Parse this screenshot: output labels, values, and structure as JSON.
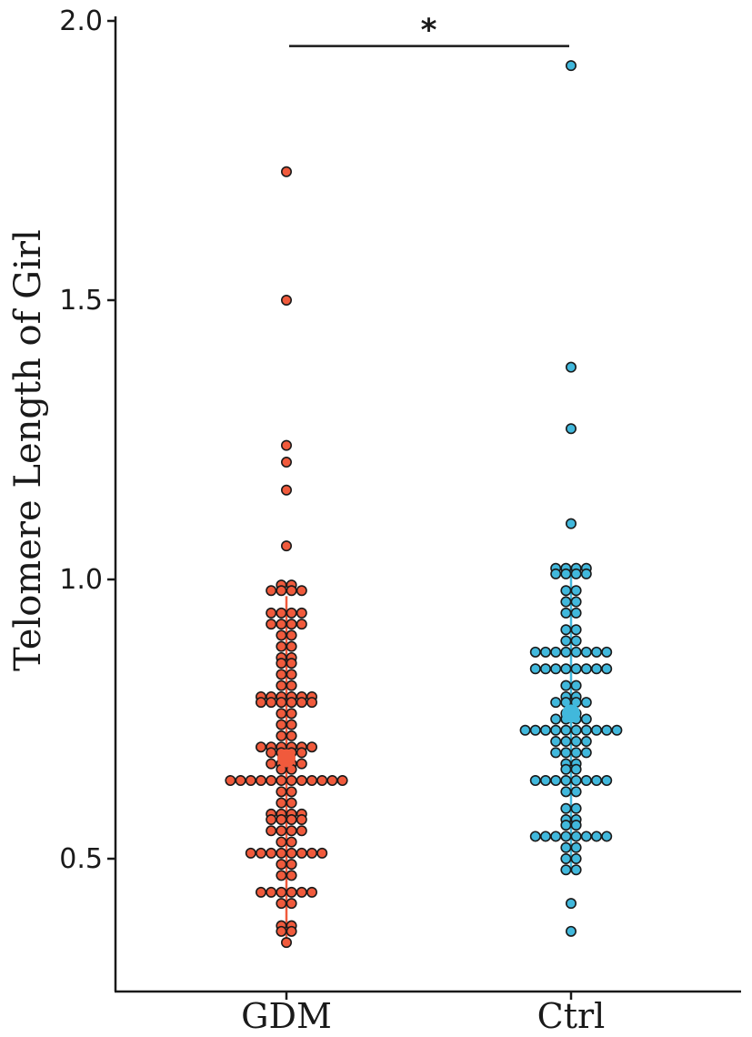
{
  "chart_data": {
    "type": "scatter",
    "style": "dot-plot (beeswarm) with mean point and error line",
    "ylabel": "Telomere Length of Girl",
    "xlabel": "",
    "categories": [
      "GDM",
      "Ctrl"
    ],
    "y_ticks": [
      "0.5",
      "1.0",
      "1.5",
      "2.0"
    ],
    "ylim": [
      0.27,
      2.0
    ],
    "significance": {
      "label": "*",
      "between": [
        "GDM",
        "Ctrl"
      ],
      "y": 1.955
    },
    "series": [
      {
        "category": "GDM",
        "color": "#f05a3c",
        "mean": 0.68,
        "range": [
          0.35,
          0.97
        ],
        "values": [
          1.73,
          1.5,
          1.24,
          1.21,
          1.16,
          1.06,
          0.99,
          0.99,
          0.98,
          0.98,
          0.98,
          0.98,
          0.94,
          0.94,
          0.94,
          0.94,
          0.92,
          0.92,
          0.92,
          0.92,
          0.9,
          0.9,
          0.88,
          0.88,
          0.86,
          0.86,
          0.85,
          0.85,
          0.83,
          0.83,
          0.81,
          0.81,
          0.79,
          0.79,
          0.79,
          0.79,
          0.79,
          0.79,
          0.78,
          0.78,
          0.78,
          0.78,
          0.78,
          0.78,
          0.76,
          0.76,
          0.74,
          0.74,
          0.72,
          0.72,
          0.7,
          0.7,
          0.7,
          0.7,
          0.7,
          0.7,
          0.69,
          0.69,
          0.69,
          0.69,
          0.67,
          0.67,
          0.67,
          0.67,
          0.66,
          0.66,
          0.64,
          0.64,
          0.64,
          0.64,
          0.64,
          0.64,
          0.64,
          0.64,
          0.64,
          0.64,
          0.64,
          0.64,
          0.62,
          0.62,
          0.6,
          0.6,
          0.58,
          0.58,
          0.58,
          0.58,
          0.57,
          0.57,
          0.57,
          0.57,
          0.55,
          0.55,
          0.55,
          0.55,
          0.53,
          0.53,
          0.51,
          0.51,
          0.51,
          0.51,
          0.51,
          0.51,
          0.51,
          0.51,
          0.49,
          0.49,
          0.47,
          0.47,
          0.44,
          0.44,
          0.44,
          0.44,
          0.44,
          0.44,
          0.42,
          0.42,
          0.38,
          0.38,
          0.37,
          0.37,
          0.35
        ]
      },
      {
        "category": "Ctrl",
        "color": "#41b8dc",
        "mean": 0.76,
        "range": [
          0.48,
          1.02
        ],
        "values": [
          1.92,
          1.38,
          1.27,
          1.1,
          1.02,
          1.02,
          1.02,
          1.02,
          1.01,
          1.01,
          1.01,
          1.01,
          0.98,
          0.98,
          0.96,
          0.96,
          0.94,
          0.94,
          0.91,
          0.91,
          0.89,
          0.89,
          0.87,
          0.87,
          0.87,
          0.87,
          0.87,
          0.87,
          0.87,
          0.87,
          0.84,
          0.84,
          0.84,
          0.84,
          0.84,
          0.84,
          0.84,
          0.84,
          0.81,
          0.81,
          0.79,
          0.79,
          0.78,
          0.78,
          0.78,
          0.78,
          0.76,
          0.76,
          0.75,
          0.75,
          0.75,
          0.75,
          0.73,
          0.73,
          0.73,
          0.73,
          0.73,
          0.73,
          0.73,
          0.73,
          0.73,
          0.73,
          0.71,
          0.71,
          0.71,
          0.71,
          0.69,
          0.69,
          0.69,
          0.69,
          0.67,
          0.67,
          0.66,
          0.66,
          0.64,
          0.64,
          0.64,
          0.64,
          0.64,
          0.64,
          0.64,
          0.64,
          0.62,
          0.62,
          0.59,
          0.59,
          0.57,
          0.57,
          0.56,
          0.56,
          0.54,
          0.54,
          0.54,
          0.54,
          0.54,
          0.54,
          0.54,
          0.54,
          0.52,
          0.52,
          0.5,
          0.5,
          0.48,
          0.48,
          0.42,
          0.37
        ]
      }
    ]
  }
}
